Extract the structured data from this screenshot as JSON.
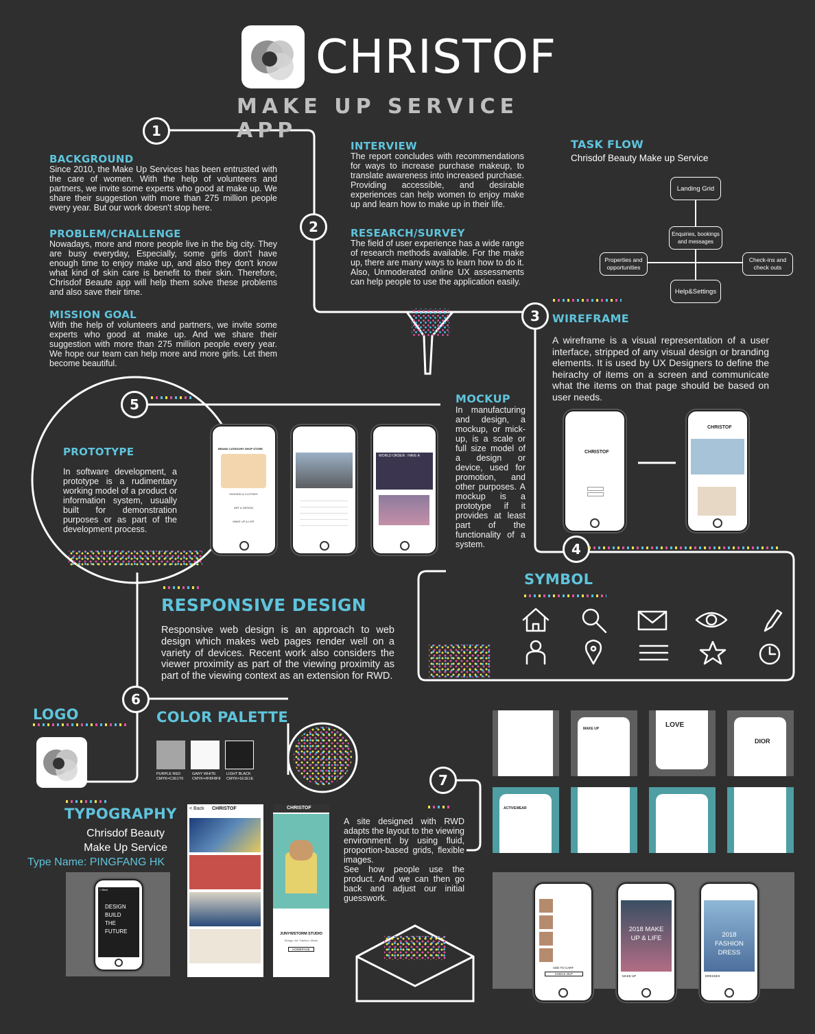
{
  "brand": {
    "name": "CHRISTOF",
    "subtitle": "MAKE UP SERVICE APP"
  },
  "sections": {
    "background": {
      "title": "BACKGROUND",
      "text": "Since 2010, the Make Up Services has been entrusted with the care of women. With the help of volunteers and partners, we invite some experts who good at make up. We share their suggestion with more than 275 million people every year. But our work doesn't stop here."
    },
    "problem": {
      "title": "PROBLEM/CHALLENGE",
      "text": "Nowadays, more and more people live in the big city. They are busy everyday, Especially, some girls don't have enough time to enjoy make up, and also they don't know what kind of skin care is benefit to their skin. Therefore, Chrisdof Beaute app will help them solve these problems and also save their time."
    },
    "mission": {
      "title": "MISSION GOAL",
      "text": "With the help of volunteers and partners, we invite some experts who good at make up. And we share their suggestion with more than 275 million people every year. We hope our team can help more and more girls. Let them become beautiful."
    },
    "interview": {
      "title": "INTERVIEW",
      "text": "The report concludes with recommendations for ways to increase purchase makeup, to translate awareness into increased purchase. Providing accessible, and desirable experiences can help women to enjoy make up and learn how to make up in their life."
    },
    "research": {
      "title": "RESEARCH/SURVEY",
      "text": "The field of user experience has a wide range of research methods available. For the make up, there are many ways to learn how to do it. Also, Unmoderated online UX assessments can help people to use the application easily."
    },
    "taskflow": {
      "title": "TASK FLOW",
      "subtitle": "Chrisdof Beauty Make up Service",
      "nodes": {
        "landing": "Landing Grid",
        "enquiries": "Enquiries, bookings and messages",
        "properties": "Properties and opportunities",
        "checkins": "Check-ins and check outs",
        "help": "Help&Settings"
      }
    },
    "wireframe": {
      "title": "WIREFRAME",
      "text": "A wireframe is a visual representation of a user interface, stripped of any visual design or branding elements. It is used by UX Designers to define the heirachy of items on a screen and communicate what the items on that page should be based on user needs."
    },
    "mockup": {
      "title": "MOCKUP",
      "text": "In manufacturing and design, a mockup, or mick-up, is a scale or full size model of a design or device, used for promotion, and other purposes. A mockup is a prototype if it provides at least part of the functionality of a system."
    },
    "prototype": {
      "title": "PROTOTYPE",
      "text": "In software development, a prototype is a rudimentary working model of a product or information system, usually built for demonstration purposes or as part of the development process."
    },
    "symbol": {
      "title": "SYMBOL"
    },
    "responsive": {
      "title": "RESPONSIVE DESIGN",
      "text": "Responsive web design is an approach to web design which makes web pages render well on a variety of devices. Recent work also considers the viewer proximity as part of the viewing proximity as part of the viewing context as an extension for RWD."
    },
    "logo": {
      "title": "LOGO"
    },
    "palette": {
      "title": "COLOR PALETTE",
      "swatches": [
        {
          "name": "PURPLE RED",
          "code": "CMYK=C2E1T6",
          "color": "#a5a5a5"
        },
        {
          "name": "GARY WHITE",
          "code": "CMYK=#F8F8F8",
          "color": "#f8f8f8"
        },
        {
          "name": "LIGHT BLACK",
          "code": "CMYK=1E1E1E",
          "color": "#1e1e1e"
        }
      ]
    },
    "typography": {
      "title": "TYPOGRAPHY",
      "line1": "Chrisdof Beauty",
      "line2": "Make Up Service",
      "typename": "Type Name: PINGFANG HK"
    },
    "rwd": {
      "text1": "A site designed with RWD adapts the layout to the viewing environment by using fluid, proportion-based grids, flexible images.",
      "text2": "See how people use the product. And we can then go back and adjust our initial guesswork."
    }
  },
  "steps": [
    "1",
    "2",
    "3",
    "4",
    "5",
    "6",
    "7"
  ],
  "mockup_screens": {
    "nav": [
      "BRAND",
      "CATEGORY",
      "SHOP",
      "STORE"
    ],
    "menu1": [
      "FASHION & CLOTHES",
      "ART & DESIGN",
      "MAKE UP & LIFE"
    ],
    "video_title": "WORLD ORDER : HAVE A"
  },
  "wire_screens": {
    "logo_text": "CHRISTOF"
  },
  "typo_phone": {
    "back": "< Back",
    "lines": [
      "DESIGN",
      "BUILD",
      "THE",
      "FUTURE"
    ]
  },
  "gallery": {
    "back": "< Back",
    "brand": "CHRISTOF",
    "studio": "JUNYWSTORM STUDIO",
    "studio_sub": "Design, Art, Fashion, Music",
    "homepage": "HOMEPAGE"
  },
  "bottom_phones": [
    {
      "title": "",
      "label": "ADD TO CART",
      "label2": "CHECK OUT"
    },
    {
      "title": "2018 MAKE UP & LIFE",
      "label": "MAKE UP"
    },
    {
      "title": "2018 FASHION DRESS",
      "label": "DRESSES"
    }
  ],
  "grid_labels": [
    "ACTIVEWEAR",
    "MAKE UP",
    "LOVE",
    "DIOR"
  ],
  "colors": {
    "accent": "#5fc4dc",
    "background": "#2f2f2f",
    "line": "#ffffff"
  }
}
